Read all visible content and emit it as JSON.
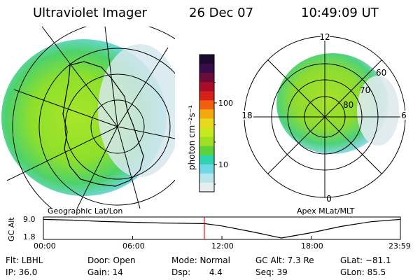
{
  "header": {
    "instrument": "Ultraviolet Imager",
    "date": "26 Dec 07",
    "time": "10:49:09 UT"
  },
  "geographic_panel": {
    "title": "Geographic Lat/Lon"
  },
  "apex_panel": {
    "title": "Apex MLat/MLT",
    "mlt_labels": [
      "12",
      "18",
      "6",
      "0"
    ],
    "mlat_labels": [
      "60",
      "70",
      "80"
    ]
  },
  "colorbar": {
    "label": "photon cm⁻²s⁻¹",
    "ticks": [
      "100",
      "10"
    ],
    "colors": [
      "#1a0a2e",
      "#3a0b4a",
      "#6a0b3a",
      "#a80c2a",
      "#d8201a",
      "#f06010",
      "#f4a810",
      "#e8d81e",
      "#c8e81e",
      "#9fe024",
      "#5fd23a",
      "#2ed4b0",
      "#6ed8e6",
      "#b8e6ec",
      "#e8eef0"
    ]
  },
  "altitude_plot": {
    "axis_label": "GC Alt",
    "y_ticks": [
      "9.0",
      "1.8"
    ],
    "x_ticks": [
      "00:00",
      "06:00",
      "12:00",
      "18:00",
      "23:59"
    ],
    "y_range": [
      1.8,
      9.0
    ],
    "series_hours": [
      0,
      2,
      4,
      6,
      8,
      10,
      10.82,
      12,
      14,
      16,
      18,
      20,
      22,
      24
    ],
    "series_alt": [
      8.9,
      8.6,
      8.1,
      7.8,
      7.5,
      7.35,
      7.3,
      6.4,
      4.2,
      1.8,
      3.8,
      6.2,
      8.0,
      8.9
    ],
    "current_hour": 10.82,
    "line_color": "#000000",
    "marker_color": "#ff0000"
  },
  "status": {
    "flt": "Flt: LBHL",
    "ip": "IP: 36.0",
    "door": "Door: Open",
    "gain": "Gain: 14",
    "mode": "Mode: Normal",
    "dsp": "Dsp:       4.4",
    "gc_alt": "GC Alt: 7.3 Re",
    "seq": "Seq: 39",
    "glat": "GLat: −81.1",
    "glon": "GLon: 85.5"
  }
}
